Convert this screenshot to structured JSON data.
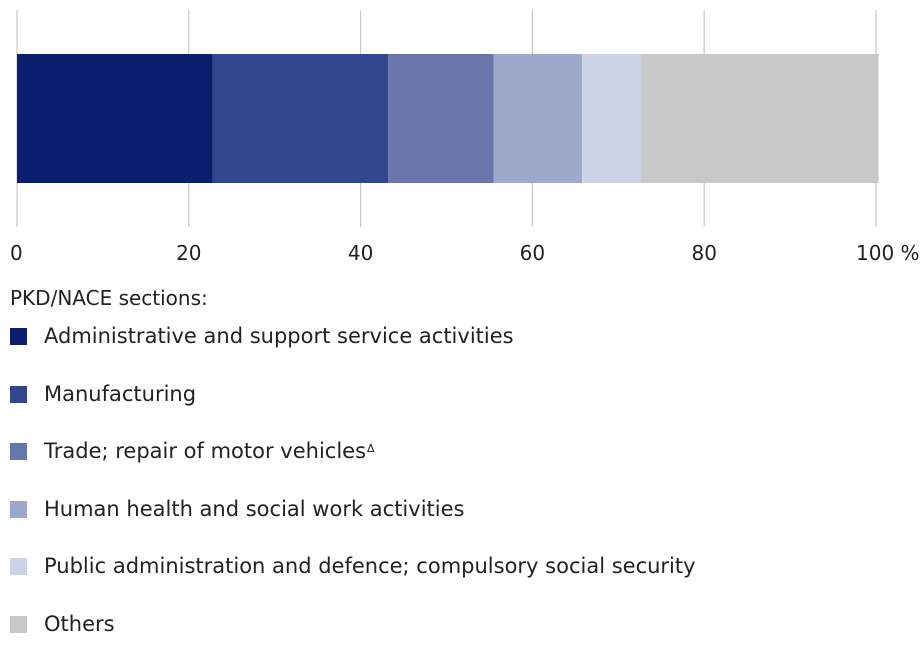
{
  "chart_data": {
    "type": "bar",
    "orientation": "horizontal",
    "stacked": true,
    "legend_title": "PKD/NACE sections:",
    "legend_position": "bottom",
    "grid": true,
    "xlim": [
      0,
      100
    ],
    "xticks": [
      0,
      20,
      40,
      60,
      80,
      100
    ],
    "tick_labels": [
      "0",
      "20",
      "40",
      "60",
      "80",
      "100 %"
    ],
    "series": [
      {
        "name": "Administrative and support service activities",
        "value": 22.8,
        "color": "#0c1f6e"
      },
      {
        "name": "Manufacturing",
        "value": 20.4,
        "color": "#31468f"
      },
      {
        "name": "Trade; repair of motor vehicles",
        "superscript": "Δ",
        "value": 12.3,
        "color": "#6876ab"
      },
      {
        "name": "Human health and social work activities",
        "value": 10.3,
        "color": "#9ca8cc"
      },
      {
        "name": "Public administration and defence; compulsory social  security",
        "value": 6.9,
        "color": "#cdd3e6"
      },
      {
        "name": "Others",
        "value": 27.6,
        "color": "#c7c8c7"
      }
    ]
  }
}
